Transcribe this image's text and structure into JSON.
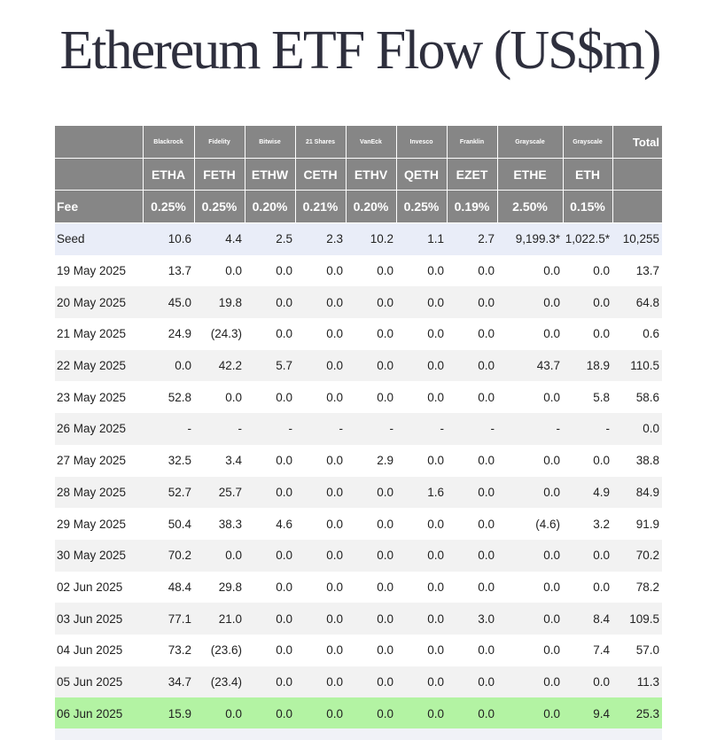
{
  "title": "Ethereum ETF Flow (US$m)",
  "columns": [
    {
      "issuer": "Blackrock",
      "ticker": "ETHA",
      "fee": "0.25%"
    },
    {
      "issuer": "Fidelity",
      "ticker": "FETH",
      "fee": "0.25%"
    },
    {
      "issuer": "Bitwise",
      "ticker": "ETHW",
      "fee": "0.20%"
    },
    {
      "issuer": "21 Shares",
      "ticker": "CETH",
      "fee": "0.21%"
    },
    {
      "issuer": "VanEck",
      "ticker": "ETHV",
      "fee": "0.20%"
    },
    {
      "issuer": "Invesco",
      "ticker": "QETH",
      "fee": "0.25%"
    },
    {
      "issuer": "Franklin",
      "ticker": "EZET",
      "fee": "0.19%"
    },
    {
      "issuer": "Grayscale",
      "ticker": "ETHE",
      "fee": "2.50%"
    },
    {
      "issuer": "Grayscale",
      "ticker": "ETH",
      "fee": "0.15%"
    }
  ],
  "total_label": "Total",
  "fee_label": "Fee",
  "rows": [
    {
      "date": "Seed",
      "values": [
        "10.6",
        "4.4",
        "2.5",
        "2.3",
        "10.2",
        "1.1",
        "2.7",
        "9,199.3*",
        "1,022.5*"
      ],
      "total": "10,255"
    },
    {
      "date": "19 May 2025",
      "values": [
        "13.7",
        "0.0",
        "0.0",
        "0.0",
        "0.0",
        "0.0",
        "0.0",
        "0.0",
        "0.0"
      ],
      "total": "13.7"
    },
    {
      "date": "20 May 2025",
      "values": [
        "45.0",
        "19.8",
        "0.0",
        "0.0",
        "0.0",
        "0.0",
        "0.0",
        "0.0",
        "0.0"
      ],
      "total": "64.8"
    },
    {
      "date": "21 May 2025",
      "values": [
        "24.9",
        "(24.3)",
        "0.0",
        "0.0",
        "0.0",
        "0.0",
        "0.0",
        "0.0",
        "0.0"
      ],
      "total": "0.6"
    },
    {
      "date": "22 May 2025",
      "values": [
        "0.0",
        "42.2",
        "5.7",
        "0.0",
        "0.0",
        "0.0",
        "0.0",
        "43.7",
        "18.9"
      ],
      "total": "110.5"
    },
    {
      "date": "23 May 2025",
      "values": [
        "52.8",
        "0.0",
        "0.0",
        "0.0",
        "0.0",
        "0.0",
        "0.0",
        "0.0",
        "5.8"
      ],
      "total": "58.6"
    },
    {
      "date": "26 May 2025",
      "values": [
        "-",
        "-",
        "-",
        "-",
        "-",
        "-",
        "-",
        "-",
        "-"
      ],
      "total": "0.0"
    },
    {
      "date": "27 May 2025",
      "values": [
        "32.5",
        "3.4",
        "0.0",
        "0.0",
        "2.9",
        "0.0",
        "0.0",
        "0.0",
        "0.0"
      ],
      "total": "38.8"
    },
    {
      "date": "28 May 2025",
      "values": [
        "52.7",
        "25.7",
        "0.0",
        "0.0",
        "0.0",
        "1.6",
        "0.0",
        "0.0",
        "4.9"
      ],
      "total": "84.9"
    },
    {
      "date": "29 May 2025",
      "values": [
        "50.4",
        "38.3",
        "4.6",
        "0.0",
        "0.0",
        "0.0",
        "0.0",
        "(4.6)",
        "3.2"
      ],
      "total": "91.9"
    },
    {
      "date": "30 May 2025",
      "values": [
        "70.2",
        "0.0",
        "0.0",
        "0.0",
        "0.0",
        "0.0",
        "0.0",
        "0.0",
        "0.0"
      ],
      "total": "70.2"
    },
    {
      "date": "02 Jun 2025",
      "values": [
        "48.4",
        "29.8",
        "0.0",
        "0.0",
        "0.0",
        "0.0",
        "0.0",
        "0.0",
        "0.0"
      ],
      "total": "78.2"
    },
    {
      "date": "03 Jun 2025",
      "values": [
        "77.1",
        "21.0",
        "0.0",
        "0.0",
        "0.0",
        "0.0",
        "3.0",
        "0.0",
        "8.4"
      ],
      "total": "109.5"
    },
    {
      "date": "04 Jun 2025",
      "values": [
        "73.2",
        "(23.6)",
        "0.0",
        "0.0",
        "0.0",
        "0.0",
        "0.0",
        "0.0",
        "7.4"
      ],
      "total": "57.0"
    },
    {
      "date": "05 Jun 2025",
      "values": [
        "34.7",
        "(23.4)",
        "0.0",
        "0.0",
        "0.0",
        "0.0",
        "0.0",
        "0.0",
        "0.0"
      ],
      "total": "11.3"
    },
    {
      "date": "06 Jun 2025",
      "values": [
        "15.9",
        "0.0",
        "0.0",
        "0.0",
        "0.0",
        "0.0",
        "0.0",
        "0.0",
        "9.4"
      ],
      "total": "25.3"
    }
  ],
  "colors": {
    "header_bg": "#868686",
    "seed_row_bg": "#e9edf8",
    "alt_row_bg": "#f2f2f2",
    "latest_row_bg": "#b3f3a3",
    "negative_text": "#c0392b"
  }
}
